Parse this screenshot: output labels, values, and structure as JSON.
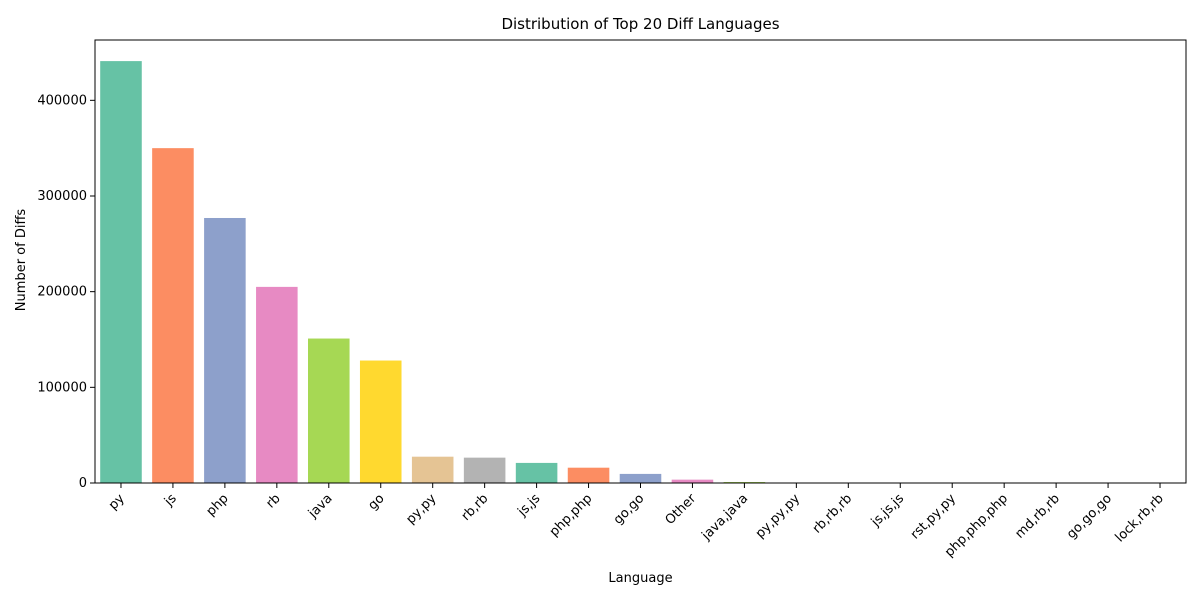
{
  "chart_data": {
    "type": "bar",
    "title": "Distribution of Top 20 Diff Languages",
    "xlabel": "Language",
    "ylabel": "Number of Diffs",
    "categories": [
      "py",
      "js",
      "php",
      "rb",
      "java",
      "go",
      "py,py",
      "rb,rb",
      "js,js",
      "php,php",
      "go,go",
      "Other",
      "java,java",
      "py,py,py",
      "rb,rb,rb",
      "js,js,js",
      "rst,py,py",
      "php,php,php",
      "md,rb,rb",
      "go,go,go",
      "lock,rb,rb"
    ],
    "values": [
      441000,
      350000,
      277000,
      205000,
      151000,
      128000,
      27500,
      26500,
      21000,
      16000,
      9500,
      3500,
      1000,
      300,
      200,
      150,
      120,
      100,
      80,
      60,
      50
    ],
    "ylim": [
      0,
      463050
    ],
    "yticks": [
      0,
      100000,
      200000,
      300000,
      400000
    ],
    "grid": false,
    "legend": "none",
    "colors": [
      "#66c2a5",
      "#fc8d62",
      "#8da0cb",
      "#e78ac3",
      "#a6d854",
      "#ffd92f",
      "#e5c494",
      "#b3b3b3"
    ]
  }
}
